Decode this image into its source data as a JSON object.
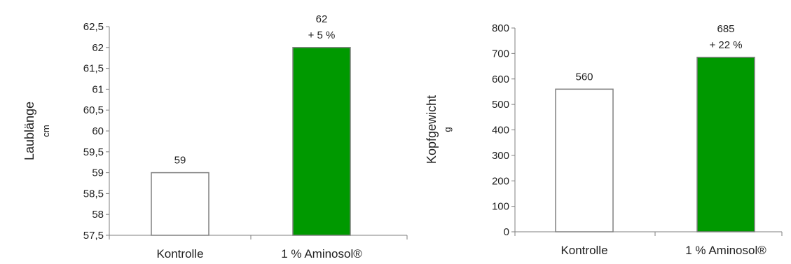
{
  "chart_data": [
    {
      "type": "bar",
      "categories": [
        "Kontrolle",
        "1 % Aminosol®"
      ],
      "values": [
        59,
        62
      ],
      "data_labels": [
        [
          "59"
        ],
        [
          "62",
          "+ 5 %"
        ]
      ],
      "ylabel": "Laublänge",
      "yunit": "cm",
      "ylim": [
        57.5,
        62.5
      ],
      "yticks": [
        57.5,
        58,
        58.5,
        59,
        59.5,
        60,
        60.5,
        61,
        61.5,
        62,
        62.5
      ],
      "ytick_labels": [
        "57,5",
        "58",
        "58,5",
        "59",
        "59,5",
        "60",
        "60,5",
        "61",
        "61,5",
        "62",
        "62,5"
      ],
      "bar_colors": [
        "#ffffff",
        "#009900"
      ],
      "bar_edge": "#808080",
      "grid": false
    },
    {
      "type": "bar",
      "categories": [
        "Kontrolle",
        "1 % Aminosol®"
      ],
      "values": [
        560,
        685
      ],
      "data_labels": [
        [
          "560"
        ],
        [
          "685",
          "+ 22 %"
        ]
      ],
      "ylabel": "Kopfgewicht",
      "yunit": "g",
      "ylim": [
        0,
        800
      ],
      "yticks": [
        0,
        100,
        200,
        300,
        400,
        500,
        600,
        700,
        800
      ],
      "ytick_labels": [
        "0",
        "100",
        "200",
        "300",
        "400",
        "500",
        "600",
        "700",
        "800"
      ],
      "bar_colors": [
        "#ffffff",
        "#009900"
      ],
      "bar_edge": "#808080",
      "grid": false
    }
  ]
}
